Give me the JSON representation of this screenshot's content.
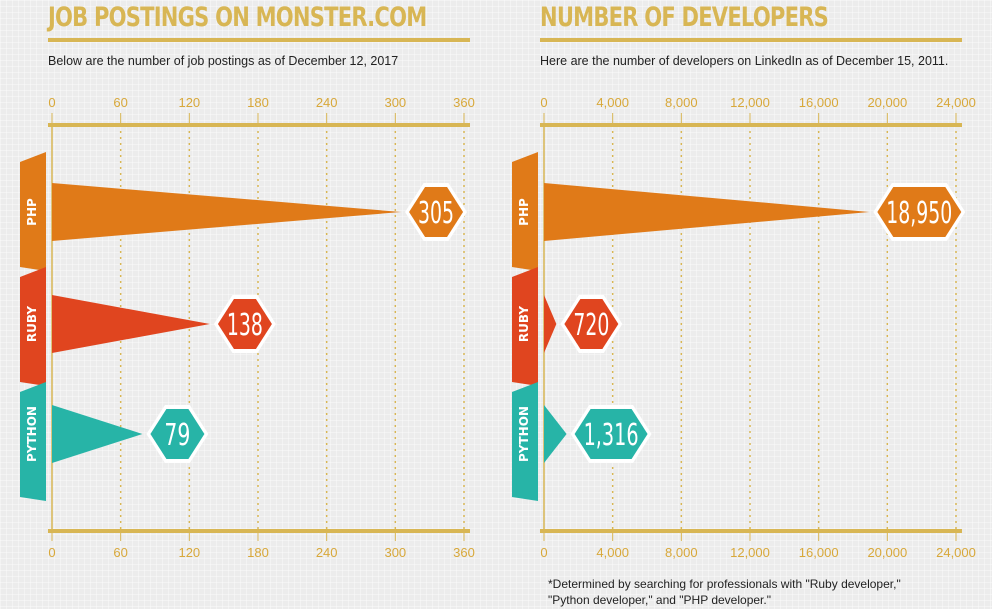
{
  "colors": {
    "title": "#d8b654",
    "rule": "#d8b654",
    "php": "#e07a18",
    "ruby": "#e0451f",
    "python": "#27b4a7",
    "tick_label": "#d8a83a"
  },
  "chart_data": [
    {
      "type": "bar",
      "title": "JOB POSTINGS ON MONSTER.COM",
      "subtitle": "Below are the number of job postings as of December 12, 2017",
      "categories": [
        "PHP",
        "RUBY",
        "PYTHON"
      ],
      "values": [
        305,
        138,
        79
      ],
      "value_labels": [
        "305",
        "138",
        "79"
      ],
      "xlim": [
        0,
        360
      ],
      "ticks": [
        0,
        60,
        120,
        180,
        240,
        300,
        360
      ],
      "tick_labels": [
        "0",
        "60",
        "120",
        "180",
        "240",
        "300",
        "360"
      ],
      "grid": true
    },
    {
      "type": "bar",
      "title": "NUMBER OF DEVELOPERS",
      "subtitle": "Here are the number of developers on LinkedIn as of December 15, 2011.",
      "categories": [
        "PHP",
        "RUBY",
        "PYTHON"
      ],
      "values": [
        18950,
        720,
        1316
      ],
      "value_labels": [
        "18,950",
        "720",
        "1,316"
      ],
      "xlim": [
        0,
        24000
      ],
      "ticks": [
        0,
        4000,
        8000,
        12000,
        16000,
        20000,
        24000
      ],
      "tick_labels": [
        "0",
        "4,000",
        "8,000",
        "12,000",
        "16,000",
        "20,000",
        "24,000"
      ],
      "grid": true
    }
  ],
  "footnote": {
    "line1": "*Determined by searching for professionals with \"Ruby developer,\"",
    "line2": "\"Python developer,\" and \"PHP developer.\""
  }
}
